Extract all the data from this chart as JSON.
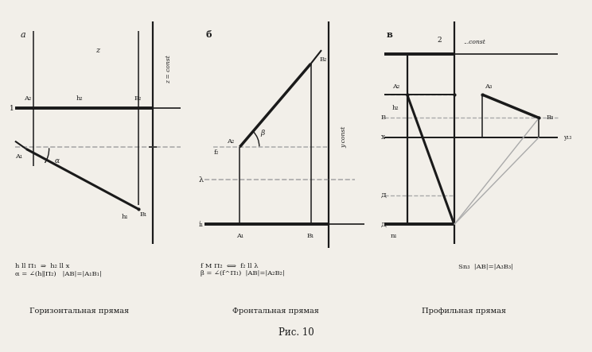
{
  "title": "Рис. 10",
  "bg_color": "#f2efe9",
  "line_color": "#1a1a1a",
  "gray_color": "#aaaaaa",
  "label_a": "а",
  "label_b": "б",
  "label_v": "в",
  "cap_a": "Горизонтальная прямая",
  "cap_b": "Фронтальная прямая",
  "cap_v": "Профильная прямая",
  "fig_title": "Рис. 10",
  "formula_a": "h ll Π₁  ⇒  h₂ ll x\nα = ∠(h,Π₂)   |AB|=|A₁B₁|",
  "formula_b": "f М Π₂  ⇔  f₂ ll λ\nβ = ∠(f^Π₁)  |AB|=|A₂B₂|",
  "formula_v": "SΠ₃  |AB| = |A₃B₃|"
}
